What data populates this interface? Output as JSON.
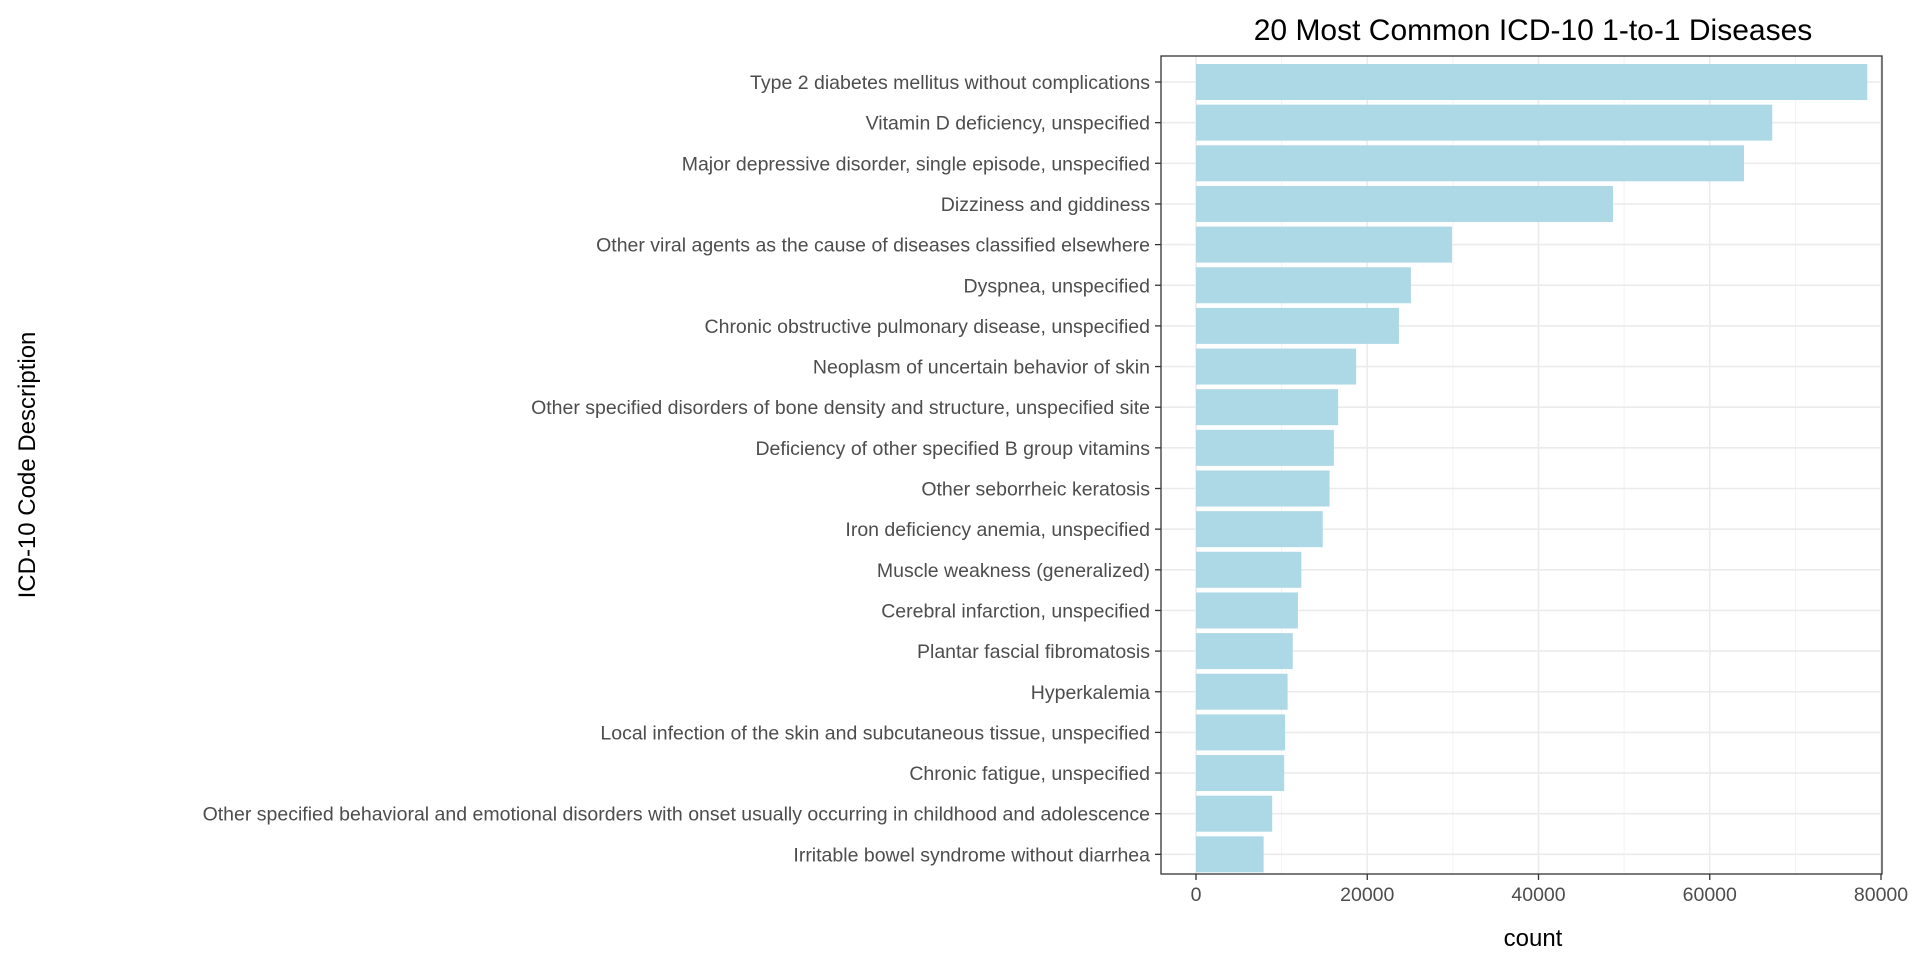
{
  "chart_data": {
    "type": "bar",
    "orientation": "horizontal",
    "title": "20 Most Common ICD-10 1-to-1 Diseases",
    "xlabel": "count",
    "ylabel": "ICD-10 Code Description",
    "xlim": [
      0,
      80000
    ],
    "xticks": [
      0,
      20000,
      40000,
      60000,
      80000
    ],
    "xtick_labels": [
      "0",
      "20000",
      "40000",
      "60000",
      "80000"
    ],
    "grid": true,
    "bar_color": "#add8e6",
    "categories": [
      "Type 2 diabetes mellitus without complications",
      "Vitamin D deficiency, unspecified",
      "Major depressive disorder, single episode, unspecified",
      "Dizziness and giddiness",
      "Other viral agents as the cause of diseases classified elsewhere",
      "Dyspnea, unspecified",
      "Chronic obstructive pulmonary disease, unspecified",
      "Neoplasm of uncertain behavior of skin",
      "Other specified disorders of bone density and structure, unspecified site",
      "Deficiency of other specified B group vitamins",
      "Other seborrheic keratosis",
      "Iron deficiency anemia, unspecified",
      "Muscle weakness (generalized)",
      "Cerebral infarction, unspecified",
      "Plantar fascial fibromatosis",
      "Hyperkalemia",
      "Local infection of the skin and subcutaneous tissue, unspecified",
      "Chronic fatigue, unspecified",
      "Other specified behavioral and emotional disorders with onset usually occurring in childhood and adolescence",
      "Irritable bowel syndrome without diarrhea"
    ],
    "values": [
      78400,
      67300,
      64000,
      48700,
      29900,
      25100,
      23700,
      18700,
      16600,
      16100,
      15600,
      14800,
      12300,
      11900,
      11300,
      10700,
      10400,
      10300,
      8900,
      7900
    ]
  }
}
